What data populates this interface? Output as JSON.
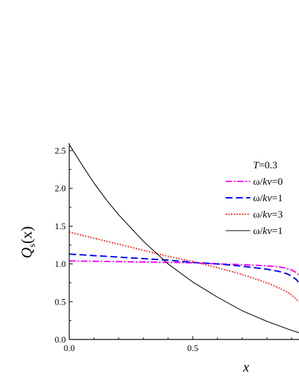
{
  "chart_data": {
    "type": "line",
    "annotation": {
      "prefix": "T",
      "suffix": "=0.3"
    },
    "xlabel": "x",
    "ylabel": {
      "main": "Q",
      "sub": "s",
      "arg": "(x)"
    },
    "xlim": [
      0.0,
      0.93
    ],
    "ylim": [
      0.0,
      2.6
    ],
    "x_ticks": [
      0.0,
      0.5
    ],
    "x_tick_labels": [
      "0.0",
      "0.5"
    ],
    "y_ticks": [
      0.0,
      0.5,
      1.0,
      1.5,
      2.0,
      2.5
    ],
    "y_tick_labels": [
      "0.0",
      "0.5",
      "1.0",
      "1.5",
      "2.0",
      "2.5"
    ],
    "grid": false,
    "legend_position": "top-right",
    "series": [
      {
        "name": "ω/kv=0",
        "legend_prefix": "ω/",
        "legend_italic": "kv",
        "legend_suffix": "=0",
        "color": "#ff00ff",
        "dash": "9,3,2,3",
        "x": [
          0.0,
          0.1,
          0.2,
          0.3,
          0.4,
          0.5,
          0.6,
          0.7,
          0.8,
          0.85,
          0.88,
          0.9,
          0.92,
          0.93
        ],
        "y": [
          1.04,
          1.035,
          1.03,
          1.025,
          1.02,
          1.015,
          1.0,
          0.99,
          0.975,
          0.96,
          0.94,
          0.92,
          0.88,
          0.85
        ]
      },
      {
        "name": "ω/kv=1",
        "legend_prefix": "ω/",
        "legend_italic": "kv",
        "legend_suffix": "=1",
        "color": "#0000ff",
        "dash": "10,5",
        "x": [
          0.0,
          0.1,
          0.2,
          0.3,
          0.4,
          0.5,
          0.6,
          0.7,
          0.8,
          0.85,
          0.88,
          0.9,
          0.92,
          0.93
        ],
        "y": [
          1.13,
          1.11,
          1.09,
          1.07,
          1.05,
          1.02,
          1.0,
          0.97,
          0.93,
          0.9,
          0.87,
          0.84,
          0.79,
          0.75
        ]
      },
      {
        "name": "ω/kv=3",
        "legend_prefix": "ω/",
        "legend_italic": "kv",
        "legend_suffix": "=3",
        "color": "#ff0000",
        "dash": "1.5,2.5",
        "x": [
          0.0,
          0.1,
          0.2,
          0.3,
          0.4,
          0.5,
          0.6,
          0.7,
          0.8,
          0.85,
          0.88,
          0.9,
          0.92,
          0.93
        ],
        "y": [
          1.42,
          1.34,
          1.26,
          1.18,
          1.1,
          1.03,
          0.95,
          0.86,
          0.75,
          0.68,
          0.63,
          0.59,
          0.53,
          0.5
        ]
      },
      {
        "name": "ω/kv=1",
        "legend_prefix": "ω/",
        "legend_italic": "kv",
        "legend_suffix": "=1",
        "color": "#000000",
        "dash": "",
        "x": [
          0.0,
          0.05,
          0.1,
          0.15,
          0.2,
          0.3,
          0.4,
          0.5,
          0.6,
          0.7,
          0.8,
          0.9,
          0.93
        ],
        "y": [
          2.58,
          2.32,
          2.07,
          1.85,
          1.65,
          1.3,
          1.0,
          0.76,
          0.56,
          0.38,
          0.24,
          0.12,
          0.09
        ]
      }
    ]
  }
}
